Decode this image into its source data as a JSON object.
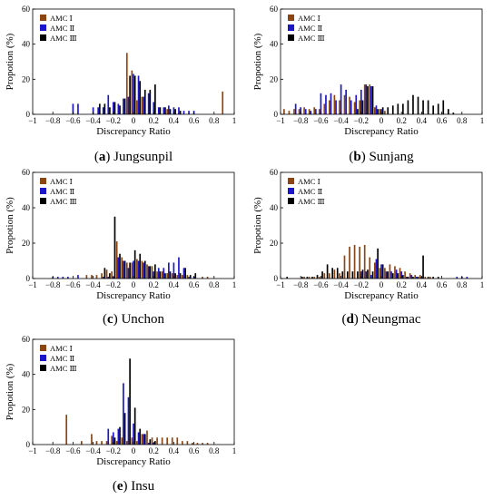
{
  "chart_data": [
    {
      "type": "bar",
      "panel_letter": "a",
      "panel_name": "Jungsunpil",
      "xlabel": "Discrepancy Ratio",
      "ylabel": "Propotion (%)",
      "xlim": [
        -1,
        1
      ],
      "ylim": [
        0,
        60
      ],
      "xticks": [
        "−1",
        "−0.8",
        "−0.6",
        "−0.4",
        "−0.2",
        "0",
        "0.2",
        "0.4",
        "0.6",
        "0.8",
        "1"
      ],
      "yticks": [
        "0",
        "20",
        "40",
        "60"
      ],
      "legend_position": "top-left",
      "bin_width": 0.05,
      "bins": [
        -0.95,
        -0.9,
        -0.85,
        -0.8,
        -0.75,
        -0.7,
        -0.65,
        -0.6,
        -0.55,
        -0.5,
        -0.45,
        -0.4,
        -0.35,
        -0.3,
        -0.25,
        -0.2,
        -0.15,
        -0.1,
        -0.05,
        0,
        0.05,
        0.1,
        0.15,
        0.2,
        0.25,
        0.3,
        0.35,
        0.4,
        0.45,
        0.5,
        0.55,
        0.6,
        0.65,
        0.7,
        0.75,
        0.8,
        0.85,
        0.9,
        0.95
      ],
      "series": [
        {
          "name": "AMC Ⅰ",
          "color": "#8b4513",
          "values": [
            0,
            0,
            0,
            0,
            0,
            0,
            0,
            0,
            0,
            0,
            0,
            0,
            0,
            0,
            0,
            0,
            0,
            0,
            35,
            25,
            8,
            10,
            0,
            0,
            0,
            0,
            3,
            0,
            0,
            0,
            0,
            0,
            0,
            0,
            0,
            0,
            0,
            13,
            0
          ]
        },
        {
          "name": "AMC Ⅱ",
          "color": "#1c16c8",
          "values": [
            0,
            0,
            0,
            0,
            0,
            0,
            0,
            6,
            6,
            0,
            0,
            4,
            4,
            4,
            11,
            7,
            6,
            9,
            10,
            23,
            22,
            10,
            12,
            7,
            4,
            4,
            5,
            4,
            4,
            2,
            2,
            2,
            0,
            0,
            0,
            0,
            0,
            0,
            0
          ]
        },
        {
          "name": "AMC Ⅲ",
          "color": "#000000",
          "values": [
            0,
            0,
            0,
            0,
            0,
            0,
            0,
            0,
            0,
            0,
            0,
            0,
            6,
            6,
            4,
            7,
            5,
            9,
            22,
            22,
            19,
            14,
            14,
            17,
            4,
            4,
            3,
            3,
            2,
            0,
            0,
            0,
            0,
            0,
            0,
            0,
            0,
            0,
            0
          ]
        }
      ]
    },
    {
      "type": "bar",
      "panel_letter": "b",
      "panel_name": "Sunjang",
      "xlabel": "Discrepancy Ratio",
      "ylabel": "Propotion (%)",
      "xlim": [
        -1,
        1
      ],
      "ylim": [
        0,
        60
      ],
      "xticks": [
        "−1",
        "−0.8",
        "−0.6",
        "−0.4",
        "−0.2",
        "0",
        "0.2",
        "0.4",
        "0.6",
        "0.8",
        "1"
      ],
      "yticks": [
        "0",
        "20",
        "40",
        "60"
      ],
      "legend_position": "top-left",
      "bin_width": 0.05,
      "bins": [
        -0.95,
        -0.9,
        -0.85,
        -0.8,
        -0.75,
        -0.7,
        -0.65,
        -0.6,
        -0.55,
        -0.5,
        -0.45,
        -0.4,
        -0.35,
        -0.3,
        -0.25,
        -0.2,
        -0.15,
        -0.1,
        -0.05,
        0,
        0.05,
        0.1,
        0.15,
        0.2,
        0.25,
        0.3,
        0.35,
        0.4,
        0.45,
        0.5,
        0.55,
        0.6,
        0.65,
        0.7,
        0.75,
        0.8,
        0.85,
        0.9,
        0.95
      ],
      "series": [
        {
          "name": "AMC Ⅰ",
          "color": "#8b4513",
          "values": [
            3,
            2,
            3,
            3,
            4,
            3,
            4,
            3,
            6,
            8,
            11,
            8,
            11,
            10,
            7,
            8,
            17,
            17,
            4,
            3,
            2,
            0,
            0,
            0,
            0,
            0,
            0,
            0,
            0,
            0,
            0,
            0,
            0,
            0,
            0,
            0,
            0,
            0,
            0
          ]
        },
        {
          "name": "AMC Ⅱ",
          "color": "#1c16c8",
          "values": [
            0,
            0,
            6,
            4,
            3,
            2,
            3,
            12,
            11,
            12,
            8,
            17,
            14,
            8,
            11,
            14,
            17,
            16,
            5,
            3,
            0,
            0,
            0,
            0,
            0,
            0,
            0,
            0,
            0,
            0,
            0,
            0,
            0,
            0,
            0,
            0,
            0,
            0,
            0
          ]
        },
        {
          "name": "AMC Ⅲ",
          "color": "#000000",
          "values": [
            0,
            0,
            0,
            0,
            0,
            0,
            0,
            0,
            0,
            0,
            0,
            0,
            0,
            0,
            3,
            8,
            16,
            16,
            3,
            4,
            4,
            5,
            6,
            6,
            8,
            11,
            10,
            8,
            8,
            5,
            6,
            8,
            3,
            1,
            0,
            0,
            0,
            0,
            0
          ]
        }
      ]
    },
    {
      "type": "bar",
      "panel_letter": "c",
      "panel_name": "Unchon",
      "xlabel": "Discrepancy Ratio",
      "ylabel": "Propotion (%)",
      "xlim": [
        -1,
        1
      ],
      "ylim": [
        0,
        60
      ],
      "xticks": [
        "−1",
        "−0.8",
        "−0.6",
        "−0.4",
        "−0.2",
        "0",
        "0.2",
        "0.4",
        "0.6",
        "0.8",
        "1"
      ],
      "yticks": [
        "0",
        "20",
        "40",
        "60"
      ],
      "legend_position": "top-left",
      "bin_width": 0.05,
      "bins": [
        -0.95,
        -0.9,
        -0.85,
        -0.8,
        -0.75,
        -0.7,
        -0.65,
        -0.6,
        -0.55,
        -0.5,
        -0.45,
        -0.4,
        -0.35,
        -0.3,
        -0.25,
        -0.2,
        -0.15,
        -0.1,
        -0.05,
        0,
        0.05,
        0.1,
        0.15,
        0.2,
        0.25,
        0.3,
        0.35,
        0.4,
        0.45,
        0.5,
        0.55,
        0.6,
        0.65,
        0.7,
        0.75,
        0.8,
        0.85,
        0.9,
        0.95
      ],
      "series": [
        {
          "name": "AMC Ⅰ",
          "color": "#8b4513",
          "values": [
            0,
            0,
            0,
            0,
            0,
            0,
            0,
            0,
            0,
            0,
            2,
            2,
            2,
            3,
            5,
            4,
            21,
            12,
            9,
            9,
            11,
            10,
            8,
            7,
            4,
            4,
            3,
            3,
            2,
            2,
            2,
            0,
            0,
            1,
            1,
            0,
            0,
            0,
            0
          ]
        },
        {
          "name": "AMC Ⅱ",
          "color": "#1c16c8",
          "values": [
            0,
            0,
            0,
            1,
            1,
            1,
            1,
            0,
            2,
            0,
            0,
            0,
            0,
            1,
            1,
            1,
            12,
            10,
            6,
            10,
            10,
            9,
            7,
            4,
            6,
            6,
            9,
            9,
            12,
            6,
            1,
            1,
            0,
            0,
            0,
            0,
            0,
            0,
            0
          ]
        },
        {
          "name": "AMC Ⅲ",
          "color": "#000000",
          "values": [
            0,
            0,
            0,
            0,
            0,
            0,
            0,
            0,
            0,
            0,
            0,
            0,
            0,
            6,
            3,
            35,
            14,
            10,
            9,
            16,
            14,
            10,
            7,
            8,
            4,
            3,
            4,
            3,
            3,
            6,
            2,
            3,
            0,
            0,
            0,
            0,
            0,
            0,
            0
          ]
        }
      ]
    },
    {
      "type": "bar",
      "panel_letter": "d",
      "panel_name": "Neungmac",
      "xlabel": "Discrepancy Ratio",
      "ylabel": "Propotion (%)",
      "xlim": [
        -1,
        1
      ],
      "ylim": [
        0,
        60
      ],
      "xticks": [
        "−1",
        "−0.8",
        "−0.6",
        "−0.4",
        "−0.2",
        "0",
        "0.2",
        "0.4",
        "0.6",
        "0.8",
        "1"
      ],
      "yticks": [
        "0",
        "20",
        "40",
        "60"
      ],
      "legend_position": "top-left",
      "bin_width": 0.05,
      "bins": [
        -0.95,
        -0.9,
        -0.85,
        -0.8,
        -0.75,
        -0.7,
        -0.65,
        -0.6,
        -0.55,
        -0.5,
        -0.45,
        -0.4,
        -0.35,
        -0.3,
        -0.25,
        -0.2,
        -0.15,
        -0.1,
        -0.05,
        0,
        0.05,
        0.1,
        0.15,
        0.2,
        0.25,
        0.3,
        0.35,
        0.4,
        0.45,
        0.5,
        0.55,
        0.6,
        0.65,
        0.7,
        0.75,
        0.8,
        0.85,
        0.9,
        0.95
      ],
      "series": [
        {
          "name": "AMC Ⅰ",
          "color": "#8b4513",
          "values": [
            0,
            0,
            0,
            0,
            1,
            1,
            1,
            1,
            3,
            3,
            5,
            3,
            13,
            18,
            19,
            18,
            19,
            12,
            9,
            6,
            6,
            8,
            7,
            6,
            4,
            3,
            2,
            2,
            1,
            1,
            0,
            0,
            0,
            0,
            0,
            0,
            0,
            0,
            0
          ]
        },
        {
          "name": "AMC Ⅱ",
          "color": "#1c16c8",
          "values": [
            0,
            0,
            0,
            0,
            0,
            0,
            0,
            0,
            0,
            0,
            0,
            0,
            0,
            0,
            0,
            4,
            4,
            2,
            11,
            8,
            4,
            4,
            5,
            4,
            1,
            2,
            1,
            1,
            0,
            0,
            0,
            0,
            0,
            0,
            1,
            1,
            1,
            0,
            0
          ]
        },
        {
          "name": "AMC Ⅲ",
          "color": "#000000",
          "values": [
            1,
            0,
            0,
            1,
            1,
            1,
            2,
            4,
            8,
            6,
            6,
            4,
            4,
            4,
            4,
            5,
            5,
            4,
            17,
            8,
            4,
            3,
            3,
            2,
            1,
            1,
            1,
            13,
            1,
            1,
            1,
            0,
            0,
            0,
            0,
            0,
            0,
            0,
            0
          ]
        }
      ]
    },
    {
      "type": "bar",
      "panel_letter": "e",
      "panel_name": "Insu",
      "xlabel": "Discrepancy Ratio",
      "ylabel": "Propotion (%)",
      "xlim": [
        -1,
        1
      ],
      "ylim": [
        0,
        60
      ],
      "xticks": [
        "−1",
        "−0.8",
        "−0.6",
        "−0.4",
        "−0.2",
        "0",
        "0.2",
        "0.4",
        "0.6",
        "0.8",
        "1"
      ],
      "yticks": [
        "0",
        "20",
        "40",
        "60"
      ],
      "legend_position": "top-left",
      "bin_width": 0.05,
      "bins": [
        -0.95,
        -0.9,
        -0.85,
        -0.8,
        -0.75,
        -0.7,
        -0.65,
        -0.6,
        -0.55,
        -0.5,
        -0.45,
        -0.4,
        -0.35,
        -0.3,
        -0.25,
        -0.2,
        -0.15,
        -0.1,
        -0.05,
        0,
        0.05,
        0.1,
        0.15,
        0.2,
        0.25,
        0.3,
        0.35,
        0.4,
        0.45,
        0.5,
        0.55,
        0.6,
        0.65,
        0.7,
        0.75,
        0.8,
        0.85,
        0.9,
        0.95
      ],
      "series": [
        {
          "name": "AMC Ⅰ",
          "color": "#8b4513",
          "values": [
            0,
            0,
            0,
            0,
            0,
            0,
            17,
            0,
            0,
            2,
            0,
            6,
            2,
            2,
            2,
            5,
            2,
            4,
            2,
            4,
            2,
            6,
            8,
            4,
            4,
            4,
            4,
            4,
            4,
            2,
            2,
            1,
            1,
            1,
            1,
            0,
            0,
            0,
            0
          ]
        },
        {
          "name": "AMC Ⅱ",
          "color": "#1c16c8",
          "values": [
            0,
            0,
            0,
            0,
            0,
            0,
            0,
            0,
            0,
            0,
            0,
            0,
            0,
            0,
            9,
            7,
            9,
            35,
            27,
            12,
            7,
            6,
            1,
            1,
            0,
            0,
            0,
            0,
            0,
            0,
            0,
            0,
            0,
            0,
            0,
            0,
            0,
            0,
            0
          ]
        },
        {
          "name": "AMC Ⅲ",
          "color": "#000000",
          "values": [
            0,
            0,
            0,
            0,
            0,
            0,
            0,
            0,
            0,
            0,
            0,
            0,
            0,
            0,
            0,
            4,
            10,
            18,
            49,
            21,
            9,
            6,
            3,
            2,
            0,
            0,
            0,
            0,
            0,
            0,
            0,
            0,
            0,
            0,
            0,
            0,
            0,
            0,
            0
          ]
        }
      ]
    }
  ]
}
